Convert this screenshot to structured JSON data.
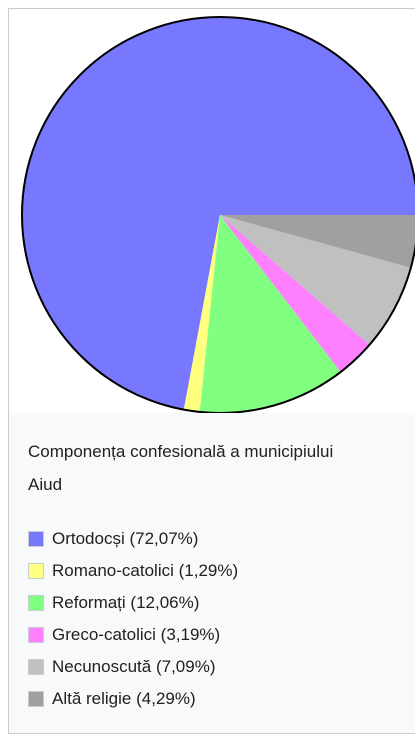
{
  "chart_data": {
    "type": "pie",
    "title": "Componența confesională a municipiului Aiud",
    "categories": [
      "Ortodocși",
      "Romano-catolici",
      "Reformați",
      "Greco-catolici",
      "Necunoscută",
      "Altă religie"
    ],
    "values": [
      72.07,
      1.29,
      12.06,
      3.19,
      7.09,
      4.29
    ],
    "value_labels": [
      "(72,07%)",
      "(1,29%)",
      "(12,06%)",
      "(3,19%)",
      "(7,09%)",
      "(4,29%)"
    ],
    "colors": [
      "#7878ff",
      "#ffff80",
      "#80ff80",
      "#ff80ff",
      "#c0c0c0",
      "#a0a0a0"
    ]
  }
}
